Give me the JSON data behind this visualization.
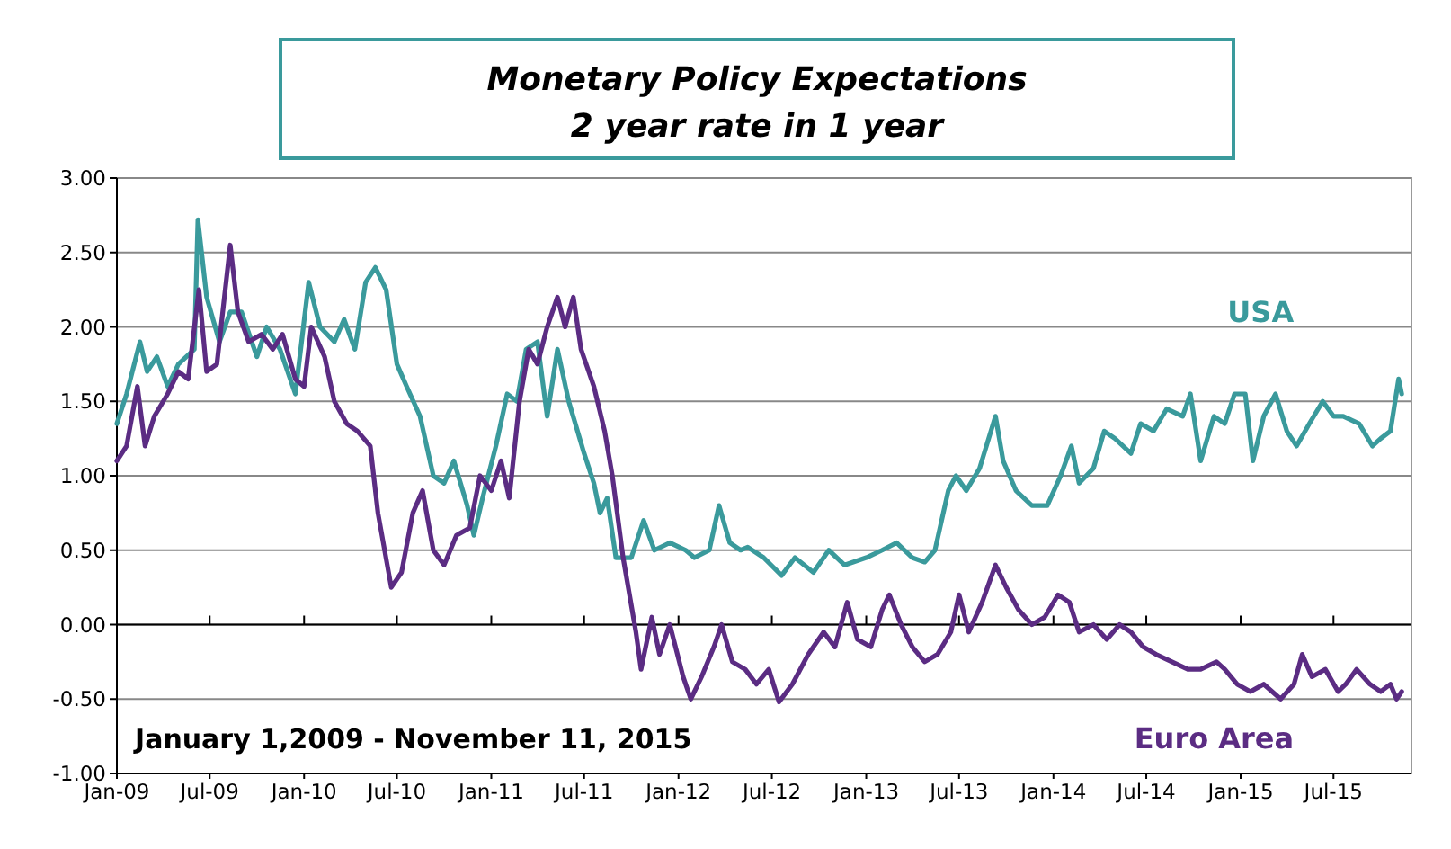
{
  "chart_data": {
    "type": "line",
    "title": "Monetary Policy Expectations",
    "subtitle": "2 year rate in 1 year",
    "annotations": [
      "January 1,2009 - November 11, 2015"
    ],
    "xlim": [
      "2009-01-01",
      "2015-11-30"
    ],
    "xticks": [
      {
        "value": "2009-01-01",
        "label": "Jan-09"
      },
      {
        "value": "2009-07-01",
        "label": "Jul-09"
      },
      {
        "value": "2010-01-01",
        "label": "Jan-10"
      },
      {
        "value": "2010-07-01",
        "label": "Jul-10"
      },
      {
        "value": "2011-01-01",
        "label": "Jan-11"
      },
      {
        "value": "2011-07-01",
        "label": "Jul-11"
      },
      {
        "value": "2012-01-01",
        "label": "Jan-12"
      },
      {
        "value": "2012-07-01",
        "label": "Jul-12"
      },
      {
        "value": "2013-01-01",
        "label": "Jan-13"
      },
      {
        "value": "2013-07-01",
        "label": "Jul-13"
      },
      {
        "value": "2014-01-01",
        "label": "Jan-14"
      },
      {
        "value": "2014-07-01",
        "label": "Jul-14"
      },
      {
        "value": "2015-01-01",
        "label": "Jan-15"
      },
      {
        "value": "2015-07-01",
        "label": "Jul-15"
      }
    ],
    "ylim": [
      -1,
      3
    ],
    "yticks": [
      {
        "value": -1,
        "label": "-1.00"
      },
      {
        "value": -0.5,
        "label": "-0.50"
      },
      {
        "value": 0,
        "label": "0.00"
      },
      {
        "value": 0.5,
        "label": "0.50"
      },
      {
        "value": 1,
        "label": "1.00"
      },
      {
        "value": 1.5,
        "label": "1.50"
      },
      {
        "value": 2,
        "label": "2.00"
      },
      {
        "value": 2.5,
        "label": "2.50"
      },
      {
        "value": 3,
        "label": "3.00"
      }
    ],
    "grid": "y",
    "marker": "none",
    "line_style": "solid",
    "series": [
      {
        "name": "USA",
        "color": "#3a9a9c",
        "x": [
          "2009-01-01",
          "2009-01-20",
          "2009-02-15",
          "2009-03-01",
          "2009-03-20",
          "2009-04-10",
          "2009-05-01",
          "2009-06-01",
          "2009-06-08",
          "2009-06-25",
          "2009-07-20",
          "2009-08-10",
          "2009-09-01",
          "2009-10-01",
          "2009-10-20",
          "2009-11-15",
          "2009-12-15",
          "2010-01-10",
          "2010-02-01",
          "2010-03-01",
          "2010-03-20",
          "2010-04-10",
          "2010-05-01",
          "2010-05-20",
          "2010-06-10",
          "2010-07-01",
          "2010-07-20",
          "2010-08-15",
          "2010-09-10",
          "2010-10-01",
          "2010-10-20",
          "2010-11-15",
          "2010-11-28",
          "2010-12-15",
          "2011-01-10",
          "2011-02-01",
          "2011-02-20",
          "2011-03-10",
          "2011-04-01",
          "2011-04-20",
          "2011-05-10",
          "2011-06-01",
          "2011-07-01",
          "2011-07-20",
          "2011-08-01",
          "2011-08-15",
          "2011-09-01",
          "2011-10-01",
          "2011-10-25",
          "2011-11-15",
          "2011-12-15",
          "2012-01-15",
          "2012-02-01",
          "2012-03-01",
          "2012-03-20",
          "2012-04-10",
          "2012-05-01",
          "2012-05-15",
          "2012-06-15",
          "2012-07-20",
          "2012-08-15",
          "2012-09-20",
          "2012-10-20",
          "2012-11-20",
          "2013-01-01",
          "2013-02-01",
          "2013-03-01",
          "2013-04-01",
          "2013-04-25",
          "2013-05-15",
          "2013-06-10",
          "2013-06-25",
          "2013-07-15",
          "2013-08-10",
          "2013-09-10",
          "2013-09-25",
          "2013-10-20",
          "2013-11-20",
          "2013-12-20",
          "2014-01-15",
          "2014-02-05",
          "2014-02-20",
          "2014-03-20",
          "2014-04-10",
          "2014-05-01",
          "2014-06-01",
          "2014-06-20",
          "2014-07-15",
          "2014-08-10",
          "2014-09-10",
          "2014-09-25",
          "2014-10-15",
          "2014-11-10",
          "2014-12-01",
          "2014-12-20",
          "2015-01-10",
          "2015-01-25",
          "2015-02-15",
          "2015-03-10",
          "2015-04-01",
          "2015-04-20",
          "2015-05-15",
          "2015-06-10",
          "2015-07-01",
          "2015-07-20",
          "2015-08-20",
          "2015-09-15",
          "2015-10-01",
          "2015-10-20",
          "2015-11-05",
          "2015-11-11"
        ],
        "values": [
          1.35,
          1.55,
          1.9,
          1.7,
          1.8,
          1.6,
          1.75,
          1.85,
          2.72,
          2.2,
          1.9,
          2.1,
          2.1,
          1.8,
          2.0,
          1.85,
          1.55,
          2.3,
          2.0,
          1.9,
          2.05,
          1.85,
          2.3,
          2.4,
          2.25,
          1.75,
          1.6,
          1.4,
          1.0,
          0.95,
          1.1,
          0.8,
          0.6,
          0.85,
          1.2,
          1.55,
          1.5,
          1.85,
          1.9,
          1.4,
          1.85,
          1.5,
          1.15,
          0.95,
          0.75,
          0.85,
          0.45,
          0.45,
          0.7,
          0.5,
          0.55,
          0.5,
          0.45,
          0.5,
          0.8,
          0.55,
          0.5,
          0.52,
          0.45,
          0.33,
          0.45,
          0.35,
          0.5,
          0.4,
          0.45,
          0.5,
          0.55,
          0.45,
          0.42,
          0.5,
          0.9,
          1.0,
          0.9,
          1.05,
          1.4,
          1.1,
          0.9,
          0.8,
          0.8,
          1.0,
          1.2,
          0.95,
          1.05,
          1.3,
          1.25,
          1.15,
          1.35,
          1.3,
          1.45,
          1.4,
          1.55,
          1.1,
          1.4,
          1.35,
          1.55,
          1.55,
          1.1,
          1.4,
          1.55,
          1.3,
          1.2,
          1.35,
          1.5,
          1.4,
          1.4,
          1.35,
          1.2,
          1.25,
          1.3,
          1.65,
          1.55
        ]
      },
      {
        "name": "Euro Area",
        "color": "#5b2c83",
        "x": [
          "2009-01-01",
          "2009-01-20",
          "2009-02-10",
          "2009-02-25",
          "2009-03-15",
          "2009-04-10",
          "2009-05-01",
          "2009-05-20",
          "2009-06-10",
          "2009-06-25",
          "2009-07-15",
          "2009-08-10",
          "2009-08-25",
          "2009-09-15",
          "2009-10-10",
          "2009-11-01",
          "2009-11-20",
          "2009-12-15",
          "2010-01-01",
          "2010-01-15",
          "2010-02-10",
          "2010-03-01",
          "2010-03-25",
          "2010-04-15",
          "2010-05-10",
          "2010-05-25",
          "2010-06-20",
          "2010-07-10",
          "2010-08-01",
          "2010-08-20",
          "2010-09-10",
          "2010-10-01",
          "2010-10-25",
          "2010-11-20",
          "2010-12-10",
          "2011-01-01",
          "2011-01-20",
          "2011-02-05",
          "2011-02-25",
          "2011-03-15",
          "2011-04-01",
          "2011-04-20",
          "2011-05-10",
          "2011-05-25",
          "2011-06-10",
          "2011-06-25",
          "2011-07-20",
          "2011-08-10",
          "2011-08-25",
          "2011-09-15",
          "2011-10-10",
          "2011-10-20",
          "2011-11-10",
          "2011-11-25",
          "2011-12-15",
          "2012-01-10",
          "2012-01-25",
          "2012-02-15",
          "2012-03-10",
          "2012-03-25",
          "2012-04-15",
          "2012-05-10",
          "2012-06-01",
          "2012-06-25",
          "2012-07-15",
          "2012-08-10",
          "2012-09-10",
          "2012-10-10",
          "2012-11-01",
          "2012-11-25",
          "2012-12-15",
          "2013-01-10",
          "2013-02-01",
          "2013-02-15",
          "2013-03-10",
          "2013-04-01",
          "2013-04-25",
          "2013-05-20",
          "2013-06-15",
          "2013-07-01",
          "2013-07-20",
          "2013-08-15",
          "2013-09-10",
          "2013-10-01",
          "2013-10-25",
          "2013-11-20",
          "2013-12-15",
          "2014-01-10",
          "2014-02-01",
          "2014-02-20",
          "2014-03-20",
          "2014-04-15",
          "2014-05-10",
          "2014-06-01",
          "2014-06-25",
          "2014-07-20",
          "2014-08-20",
          "2014-09-20",
          "2014-10-15",
          "2014-11-15",
          "2014-12-01",
          "2014-12-25",
          "2015-01-20",
          "2015-02-15",
          "2015-03-20",
          "2015-04-15",
          "2015-05-01",
          "2015-05-20",
          "2015-06-15",
          "2015-07-10",
          "2015-07-25",
          "2015-08-15",
          "2015-09-10",
          "2015-10-01",
          "2015-10-20",
          "2015-11-01",
          "2015-11-11"
        ],
        "values": [
          1.1,
          1.2,
          1.6,
          1.2,
          1.4,
          1.55,
          1.7,
          1.65,
          2.25,
          1.7,
          1.75,
          2.55,
          2.1,
          1.9,
          1.95,
          1.85,
          1.95,
          1.65,
          1.6,
          2.0,
          1.8,
          1.5,
          1.35,
          1.3,
          1.2,
          0.75,
          0.25,
          0.35,
          0.75,
          0.9,
          0.5,
          0.4,
          0.6,
          0.65,
          1.0,
          0.9,
          1.1,
          0.85,
          1.5,
          1.85,
          1.75,
          2.0,
          2.2,
          2.0,
          2.2,
          1.85,
          1.6,
          1.3,
          1.0,
          0.45,
          -0.05,
          -0.3,
          0.05,
          -0.2,
          0.0,
          -0.35,
          -0.5,
          -0.35,
          -0.15,
          0.0,
          -0.25,
          -0.3,
          -0.4,
          -0.3,
          -0.52,
          -0.4,
          -0.2,
          -0.05,
          -0.15,
          0.15,
          -0.1,
          -0.15,
          0.1,
          0.2,
          0.0,
          -0.15,
          -0.25,
          -0.2,
          -0.05,
          0.2,
          -0.05,
          0.15,
          0.4,
          0.25,
          0.1,
          0.0,
          0.05,
          0.2,
          0.15,
          -0.05,
          0.0,
          -0.1,
          0.0,
          -0.05,
          -0.15,
          -0.2,
          -0.25,
          -0.3,
          -0.3,
          -0.25,
          -0.3,
          -0.4,
          -0.45,
          -0.4,
          -0.5,
          -0.4,
          -0.2,
          -0.35,
          -0.3,
          -0.45,
          -0.4,
          -0.3,
          -0.4,
          -0.45,
          -0.4,
          -0.5,
          -0.45
        ]
      }
    ]
  }
}
